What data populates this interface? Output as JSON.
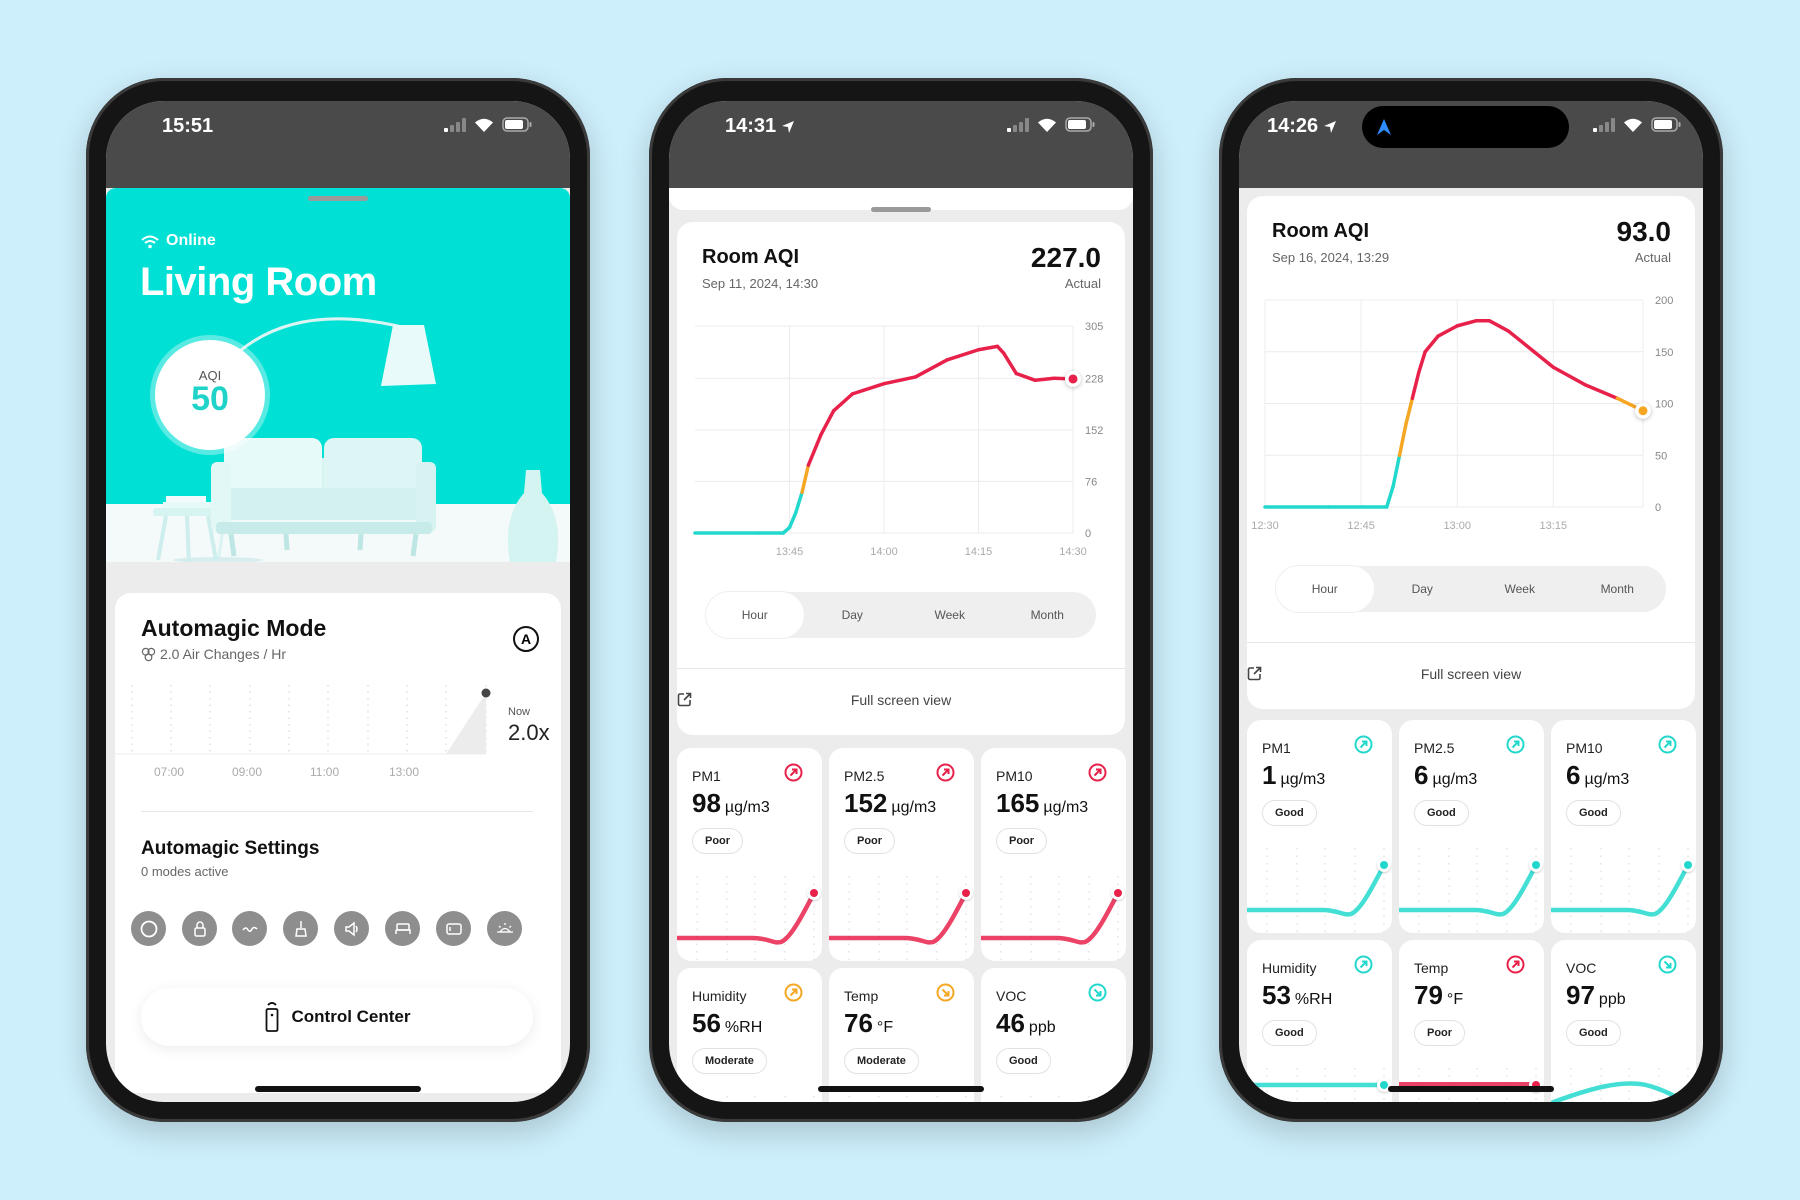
{
  "background": "#cdeefb",
  "colors": {
    "hero": "#00e0d4",
    "good": "#22d8cc",
    "moderate": "#f5a623",
    "poor": "#e8214a"
  },
  "phone1": {
    "status": {
      "time": "15:51"
    },
    "hero": {
      "status": "Online",
      "room": "Living Room",
      "aqi_label": "AQI",
      "aqi_value": "50"
    },
    "automagic": {
      "title": "Automagic Mode",
      "subtitle": "2.0 Air Changes / Hr",
      "badge": "A",
      "times": [
        "07:00",
        "09:00",
        "11:00",
        "13:00"
      ],
      "now_label": "Now",
      "now_value": "2.0x"
    },
    "settings": {
      "title": "Automagic Settings",
      "subtitle": "0 modes active",
      "modes": [
        "circle-icon",
        "lock-icon",
        "fan-icon",
        "broom-icon",
        "speaker-icon",
        "bed-icon",
        "screen-icon",
        "sun-icon"
      ]
    },
    "control_center": "Control Center"
  },
  "phone2": {
    "status": {
      "time": "14:31"
    },
    "card": {
      "title": "Room AQI",
      "date": "Sep 11, 2024, 14:30",
      "value": "227.0",
      "value_label": "Actual",
      "tabs": [
        "Hour",
        "Day",
        "Week",
        "Month"
      ],
      "active_tab": "Hour",
      "full_screen": "Full screen view"
    },
    "metrics": [
      {
        "label": "PM1",
        "value": "98",
        "unit": "µg/m3",
        "status": "Poor",
        "trend": "up",
        "color": "#e8214a"
      },
      {
        "label": "PM2.5",
        "value": "152",
        "unit": "µg/m3",
        "status": "Poor",
        "trend": "up",
        "color": "#e8214a"
      },
      {
        "label": "PM10",
        "value": "165",
        "unit": "µg/m3",
        "status": "Poor",
        "trend": "up",
        "color": "#e8214a"
      },
      {
        "label": "Humidity",
        "value": "56",
        "unit": "%RH",
        "status": "Moderate",
        "trend": "up",
        "color": "#f5a623"
      },
      {
        "label": "Temp",
        "value": "76",
        "unit": "°F",
        "status": "Moderate",
        "trend": "down",
        "color": "#f5a623"
      },
      {
        "label": "VOC",
        "value": "46",
        "unit": "ppb",
        "status": "Good",
        "trend": "down",
        "color": "#22d8cc"
      }
    ]
  },
  "phone3": {
    "status": {
      "time": "14:26"
    },
    "card": {
      "title": "Room AQI",
      "date": "Sep 16, 2024, 13:29",
      "value": "93.0",
      "value_label": "Actual",
      "tabs": [
        "Hour",
        "Day",
        "Week",
        "Month"
      ],
      "active_tab": "Hour",
      "full_screen": "Full screen view"
    },
    "metrics": [
      {
        "label": "PM1",
        "value": "1",
        "unit": "µg/m3",
        "status": "Good",
        "trend": "up",
        "color": "#22d8cc"
      },
      {
        "label": "PM2.5",
        "value": "6",
        "unit": "µg/m3",
        "status": "Good",
        "trend": "up",
        "color": "#22d8cc"
      },
      {
        "label": "PM10",
        "value": "6",
        "unit": "µg/m3",
        "status": "Good",
        "trend": "up",
        "color": "#22d8cc"
      },
      {
        "label": "Humidity",
        "value": "53",
        "unit": "%RH",
        "status": "Good",
        "trend": "up",
        "color": "#22d8cc"
      },
      {
        "label": "Temp",
        "value": "79",
        "unit": "°F",
        "status": "Poor",
        "trend": "up",
        "color": "#e8214a"
      },
      {
        "label": "VOC",
        "value": "97",
        "unit": "ppb",
        "status": "Good",
        "trend": "down",
        "color": "#22d8cc"
      }
    ]
  },
  "chart_data": [
    {
      "type": "line",
      "title": "Room AQI",
      "xlim": [
        "13:30",
        "14:30"
      ],
      "xticks": [
        "13:45",
        "14:00",
        "14:15",
        "14:30"
      ],
      "ylim": [
        0,
        305
      ],
      "yticks": [
        0,
        76,
        152,
        228,
        305
      ],
      "grid": true,
      "x": [
        "13:30",
        "13:40",
        "13:44",
        "13:45",
        "13:46",
        "13:47",
        "13:48",
        "13:50",
        "13:52",
        "13:55",
        "14:00",
        "14:05",
        "14:10",
        "14:15",
        "14:18",
        "14:19",
        "14:21",
        "14:24",
        "14:27",
        "14:30"
      ],
      "y": [
        0,
        0,
        0,
        8,
        30,
        60,
        100,
        145,
        180,
        205,
        220,
        230,
        255,
        270,
        275,
        265,
        235,
        225,
        228,
        227
      ]
    },
    {
      "type": "line",
      "title": "Room AQI",
      "xlim": [
        "12:30",
        "13:29"
      ],
      "xticks": [
        "12:30",
        "12:45",
        "13:00",
        "13:15"
      ],
      "ylim": [
        0,
        200
      ],
      "yticks": [
        0,
        50,
        100,
        150,
        200
      ],
      "grid": true,
      "x": [
        "12:30",
        "12:40",
        "12:49",
        "12:50",
        "12:51",
        "12:52",
        "12:53",
        "12:54",
        "12:55",
        "12:57",
        "13:00",
        "13:03",
        "13:05",
        "13:08",
        "13:12",
        "13:15",
        "13:20",
        "13:25",
        "13:29"
      ],
      "y": [
        0,
        0,
        0,
        20,
        50,
        80,
        105,
        130,
        150,
        165,
        175,
        180,
        180,
        170,
        150,
        135,
        118,
        105,
        93
      ]
    }
  ]
}
